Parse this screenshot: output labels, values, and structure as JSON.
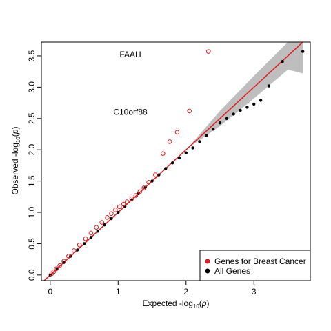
{
  "chart_data": {
    "type": "scatter",
    "xlabel": "Expected  -log10(p)",
    "ylabel": "Observed  -log10(p)",
    "xlim": [
      -0.13,
      3.83
    ],
    "ylim": [
      -0.09,
      3.72
    ],
    "x_ticks": [
      0,
      1,
      2,
      3
    ],
    "y_ticks": [
      0.0,
      0.5,
      1.0,
      1.5,
      2.0,
      2.5,
      3.0,
      3.5
    ],
    "x_tick_labels": [
      "0",
      "1",
      "2",
      "3"
    ],
    "y_tick_labels": [
      "0.0",
      "0.5",
      "1.0",
      "1.5",
      "2.0",
      "2.5",
      "3.0",
      "3.5"
    ],
    "grid": false,
    "legend_position": "bottom-right",
    "reference_line": {
      "slope": 1,
      "intercept": 0,
      "color": "#e41a1c"
    },
    "confidence_band": {
      "color": "#bebebe",
      "upper": [
        [
          2.1,
          2.12
        ],
        [
          2.5,
          2.62
        ],
        [
          3.0,
          3.18
        ],
        [
          3.5,
          3.72
        ],
        [
          3.72,
          3.72
        ]
      ],
      "lower": [
        [
          2.1,
          2.08
        ],
        [
          2.5,
          2.38
        ],
        [
          3.0,
          2.82
        ],
        [
          3.5,
          3.28
        ],
        [
          3.72,
          3.22
        ]
      ]
    },
    "annotations": [
      {
        "text": "FAAH",
        "x": 1.18,
        "y": 3.52
      },
      {
        "text": "C10orf88",
        "x": 1.18,
        "y": 2.6
      }
    ],
    "series": [
      {
        "name": "Genes for Breast Cancer",
        "color": "#e41a1c",
        "marker": "open-circle",
        "x": [
          0.02,
          0.05,
          0.09,
          0.14,
          0.2,
          0.27,
          0.35,
          0.43,
          0.52,
          0.6,
          0.68,
          0.76,
          0.84,
          0.9,
          0.96,
          1.02,
          1.08,
          1.13,
          1.2,
          1.26,
          1.32,
          1.38,
          1.45,
          1.55,
          1.66,
          1.76,
          1.87,
          2.05,
          2.33
        ],
        "y": [
          0.02,
          0.05,
          0.1,
          0.15,
          0.22,
          0.3,
          0.39,
          0.48,
          0.58,
          0.67,
          0.76,
          0.84,
          0.92,
          0.98,
          1.04,
          1.09,
          1.13,
          1.17,
          1.22,
          1.27,
          1.33,
          1.39,
          1.48,
          1.6,
          1.94,
          2.13,
          2.28,
          2.62,
          3.57
        ]
      },
      {
        "name": "All Genes",
        "color": "#000000",
        "marker": "filled-circle",
        "x": [
          0.0,
          0.1,
          0.2,
          0.3,
          0.4,
          0.5,
          0.6,
          0.7,
          0.8,
          0.9,
          1.0,
          1.1,
          1.2,
          1.3,
          1.4,
          1.5,
          1.6,
          1.7,
          1.8,
          1.9,
          2.0,
          2.1,
          2.2,
          2.3,
          2.4,
          2.5,
          2.6,
          2.7,
          2.8,
          2.9,
          3.0,
          3.1,
          3.22,
          3.42,
          3.72
        ],
        "y": [
          0.0,
          0.1,
          0.2,
          0.3,
          0.4,
          0.5,
          0.6,
          0.7,
          0.8,
          0.9,
          1.0,
          1.1,
          1.2,
          1.3,
          1.4,
          1.5,
          1.6,
          1.7,
          1.79,
          1.87,
          1.95,
          2.03,
          2.13,
          2.23,
          2.33,
          2.43,
          2.5,
          2.57,
          2.63,
          2.68,
          2.73,
          2.79,
          3.02,
          3.41,
          3.57
        ]
      }
    ]
  }
}
